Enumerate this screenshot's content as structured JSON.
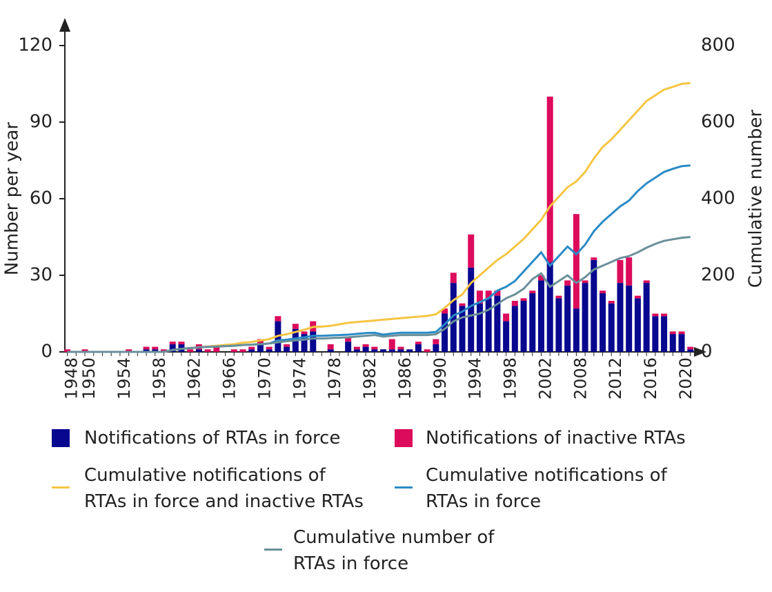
{
  "chart_data": {
    "type": "bar",
    "stacked": true,
    "y_label": "Number per year",
    "y2_label": "Cumulative number",
    "categories": [
      "1948",
      null,
      "1950",
      null,
      null,
      null,
      "1954",
      null,
      null,
      null,
      "1958",
      null,
      null,
      null,
      "1962",
      null,
      null,
      null,
      "1966",
      null,
      null,
      null,
      "1970",
      null,
      null,
      null,
      "1974",
      null,
      null,
      null,
      "1978",
      null,
      null,
      null,
      "1982",
      null,
      null,
      null,
      "1986",
      null,
      null,
      null,
      "1990",
      null,
      null,
      null,
      "1994",
      null,
      null,
      null,
      "1998",
      null,
      null,
      null,
      "2002",
      null,
      null,
      null,
      "2008",
      null,
      null,
      null,
      "2012",
      null,
      null,
      null,
      "2016",
      null,
      null,
      null,
      "2020",
      null
    ],
    "ylim": [
      0,
      120
    ],
    "yticks": [
      0,
      30,
      60,
      90,
      120
    ],
    "y2lim": [
      0,
      800
    ],
    "y2ticks": [
      0,
      200,
      400,
      600,
      800
    ],
    "series": [
      {
        "name": "Notifications of RTAs in force",
        "color": "#07078f",
        "type": "bar",
        "values": [
          0,
          0,
          0,
          0,
          0,
          0,
          0,
          0,
          0,
          1,
          1,
          0,
          3,
          3,
          0,
          1,
          0,
          0,
          0,
          0,
          0,
          1,
          3,
          1,
          12,
          2,
          9,
          7,
          8,
          0,
          1,
          0,
          4,
          1,
          2,
          1,
          1,
          1,
          1,
          1,
          3,
          0,
          3,
          15,
          27,
          18,
          33,
          19,
          21,
          22,
          12,
          18,
          20,
          23,
          28,
          35,
          21,
          26,
          17,
          27,
          36,
          23,
          19,
          27,
          26,
          21,
          27,
          14,
          14,
          7,
          7,
          1
        ]
      },
      {
        "name": "Notifications of inactive RTAs",
        "color": "#dc0b5b",
        "type": "bar",
        "values": [
          1,
          0,
          1,
          0,
          0,
          0,
          0,
          1,
          0,
          1,
          1,
          1,
          1,
          1,
          1,
          2,
          1,
          2,
          0,
          1,
          1,
          1,
          2,
          1,
          2,
          1,
          2,
          1,
          4,
          0,
          2,
          0,
          2,
          1,
          1,
          1,
          0,
          4,
          1,
          0,
          1,
          1,
          2,
          2,
          4,
          1,
          13,
          5,
          3,
          2,
          3,
          2,
          1,
          1,
          2,
          65,
          1,
          2,
          37,
          1,
          1,
          1,
          1,
          9,
          11,
          1,
          1,
          1,
          1,
          1,
          1,
          1
        ]
      },
      {
        "name": "Cumulative notifications of RTAs in force and inactive RTAs",
        "color": "#f5c542",
        "type": "line",
        "axis": "y2",
        "values": [
          0,
          0,
          0,
          0,
          0,
          0,
          0,
          0,
          0,
          0,
          0,
          0,
          5,
          8,
          10,
          12,
          14,
          16,
          18,
          20,
          24,
          26,
          30,
          33,
          42,
          46,
          52,
          58,
          65,
          66,
          68,
          72,
          76,
          78,
          80,
          82,
          84,
          86,
          88,
          90,
          92,
          94,
          98,
          115,
          135,
          150,
          180,
          200,
          220,
          240,
          255,
          275,
          295,
          320,
          345,
          380,
          405,
          430,
          445,
          470,
          505,
          535,
          555,
          580,
          605,
          630,
          655,
          670,
          685,
          692,
          700,
          702
        ]
      },
      {
        "name": "Cumulative notifications of RTAs in force",
        "color": "#2a8ac6",
        "type": "line",
        "axis": "y2",
        "values": [
          0,
          0,
          0,
          0,
          0,
          0,
          0,
          0,
          0,
          0,
          0,
          0,
          5,
          8,
          10,
          12,
          13,
          14,
          15,
          16,
          18,
          19,
          20,
          22,
          30,
          32,
          35,
          38,
          42,
          42,
          43,
          44,
          45,
          47,
          49,
          50,
          45,
          48,
          50,
          50,
          50,
          50,
          52,
          72,
          95,
          105,
          120,
          130,
          140,
          160,
          170,
          185,
          210,
          235,
          260,
          225,
          250,
          275,
          255,
          280,
          315,
          340,
          360,
          380,
          395,
          420,
          440,
          455,
          470,
          478,
          485,
          487
        ]
      },
      {
        "name": "Cumulative number of RTAs in force",
        "color": "#6a8f99",
        "type": "line",
        "axis": "y2",
        "values": [
          0,
          0,
          0,
          0,
          0,
          0,
          0,
          0,
          0,
          0,
          0,
          0,
          5,
          8,
          10,
          12,
          13,
          14,
          15,
          16,
          18,
          19,
          20,
          22,
          25,
          28,
          30,
          32,
          35,
          35,
          36,
          37,
          38,
          40,
          42,
          44,
          40,
          42,
          44,
          44,
          44,
          44,
          46,
          60,
          80,
          90,
          95,
          100,
          110,
          125,
          140,
          150,
          165,
          190,
          205,
          170,
          185,
          200,
          180,
          195,
          215,
          225,
          235,
          245,
          250,
          260,
          272,
          282,
          290,
          294,
          298,
          300
        ]
      }
    ]
  }
}
